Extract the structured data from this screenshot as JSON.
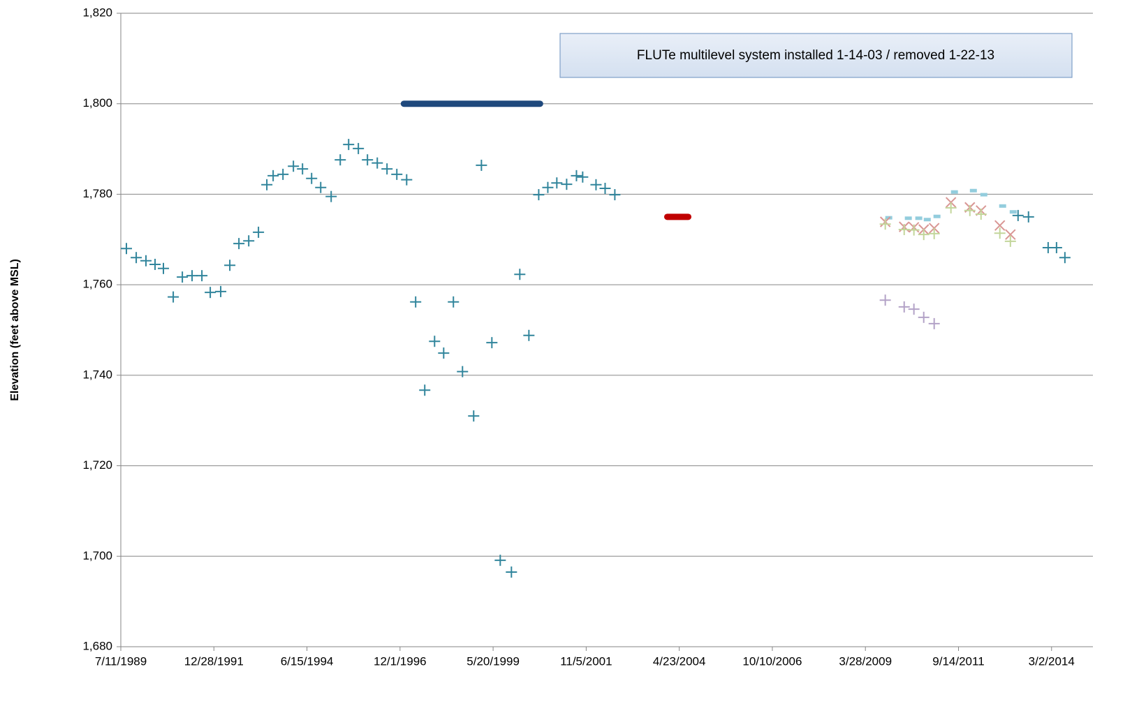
{
  "chart_data": {
    "type": "scatter",
    "y_label": "Elevation (feet above MSL)",
    "annotation": "FLUTe multilevel system installed 1-14-03 / removed 1-22-13",
    "xlim": [
      32700,
      42100
    ],
    "xticks": [
      {
        "value": 32700,
        "label": "7/11/1989"
      },
      {
        "value": 33600,
        "label": "12/28/1991"
      },
      {
        "value": 34500,
        "label": "6/15/1994"
      },
      {
        "value": 35400,
        "label": "12/1/1996"
      },
      {
        "value": 36300,
        "label": "5/20/1999"
      },
      {
        "value": 37200,
        "label": "11/5/2001"
      },
      {
        "value": 38100,
        "label": "4/23/2004"
      },
      {
        "value": 39000,
        "label": "10/10/2006"
      },
      {
        "value": 39900,
        "label": "3/28/2009"
      },
      {
        "value": 40800,
        "label": "9/14/2011"
      },
      {
        "value": 41700,
        "label": "3/2/2014"
      }
    ],
    "ylim": [
      1680,
      1820
    ],
    "yticks": [
      {
        "value": 1680,
        "label": "1,680"
      },
      {
        "value": 1700,
        "label": "1,700"
      },
      {
        "value": 1720,
        "label": "1,720"
      },
      {
        "value": 1740,
        "label": "1,740"
      },
      {
        "value": 1760,
        "label": "1,760"
      },
      {
        "value": 1780,
        "label": "1,780"
      },
      {
        "value": 1800,
        "label": "1,800"
      },
      {
        "value": 1820,
        "label": "1,820"
      }
    ],
    "grid": true,
    "series": [
      {
        "marker": "plus",
        "color": "#31859c",
        "x": [
          32754,
          32849,
          32943,
          33031,
          33112,
          33207,
          33295,
          33389,
          33484,
          33565,
          33666,
          33754,
          33842,
          33937,
          34031,
          34112,
          34173,
          34268,
          34369,
          34457,
          34545,
          34633,
          34734,
          34822,
          34903,
          34997,
          35085,
          35180,
          35274,
          35369,
          35464,
          35551,
          35639,
          35734,
          35822,
          35916,
          36004,
          36112,
          36187,
          36288,
          36369,
          36477,
          36558,
          36646,
          36741,
          36829,
          36916,
          37011,
          37106,
          37166,
          37295,
          37383,
          37477,
          41376,
          41477,
          41667,
          41748,
          41829
        ],
        "values": [
          1768.0,
          1766.0,
          1765.3,
          1764.5,
          1763.6,
          1757.3,
          1761.7,
          1762.0,
          1762.0,
          1758.3,
          1758.5,
          1764.3,
          1769.1,
          1769.7,
          1771.6,
          1782.1,
          1784.1,
          1784.4,
          1786.2,
          1785.6,
          1783.5,
          1781.5,
          1779.5,
          1787.6,
          1791.0,
          1790.1,
          1787.6,
          1786.9,
          1785.6,
          1784.4,
          1783.2,
          1756.2,
          1736.7,
          1747.5,
          1744.9,
          1756.2,
          1740.8,
          1731.0,
          1786.4,
          1747.2,
          1699.1,
          1696.5,
          1762.3,
          1748.8,
          1779.9,
          1781.5,
          1782.5,
          1782.2,
          1784.1,
          1783.8,
          1782.1,
          1781.3,
          1779.9,
          1775.3,
          1775.0,
          1768.2,
          1768.2,
          1766.0
        ]
      },
      {
        "marker": "dash",
        "color": "#93cddd",
        "x": [
          40126,
          40315,
          40416,
          40498,
          40592,
          40761,
          40944,
          41045,
          41227,
          41329
        ],
        "values": [
          1774.8,
          1774.7,
          1774.7,
          1774.4,
          1775.1,
          1780.5,
          1780.8,
          1779.9,
          1777.4,
          1776.1
        ]
      },
      {
        "marker": "cross",
        "color": "#d99694",
        "x": [
          40092,
          40275,
          40369,
          40464,
          40565,
          40727,
          40910,
          41018,
          41200,
          41302
        ],
        "values": [
          1773.9,
          1772.8,
          1772.7,
          1772.2,
          1772.5,
          1778.2,
          1777.1,
          1776.4,
          1773.1,
          1771.1
        ]
      },
      {
        "marker": "plus",
        "color": "#c3d69b",
        "x": [
          40092,
          40275,
          40369,
          40464,
          40565,
          40727,
          40910,
          41018,
          41200,
          41302
        ],
        "values": [
          1773.4,
          1772.2,
          1772.1,
          1771.1,
          1771.3,
          1777.0,
          1776.4,
          1775.6,
          1771.4,
          1769.6
        ]
      },
      {
        "marker": "plus",
        "color": "#b3a2c7",
        "x": [
          40092,
          40275,
          40369,
          40464,
          40565
        ],
        "values": [
          1756.6,
          1755.1,
          1754.6,
          1752.8,
          1751.4
        ]
      },
      {
        "marker": "line",
        "color": "#1f497d",
        "x": [
          35437,
          36754
        ],
        "values": [
          1800,
          1800
        ]
      },
      {
        "marker": "line",
        "color": "#c00000",
        "x": [
          37984,
          38187
        ],
        "values": [
          1775,
          1775
        ]
      }
    ]
  }
}
